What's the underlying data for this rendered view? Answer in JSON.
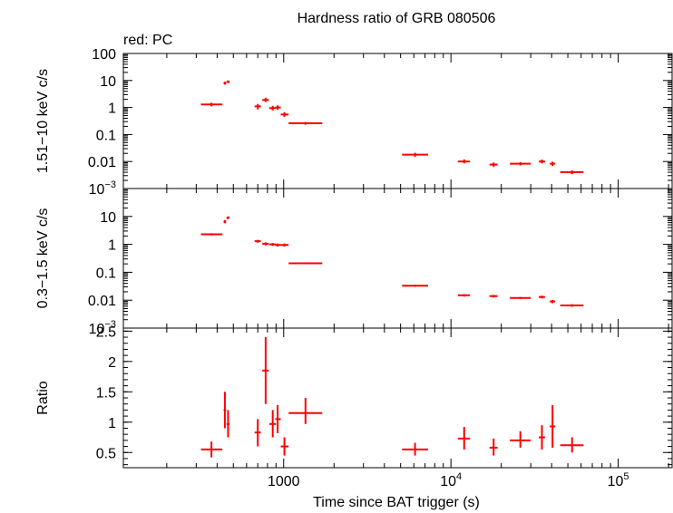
{
  "title": "Hardness ratio of GRB 080506",
  "subtitle": "red: PC",
  "x_label": "Time since BAT trigger (s)",
  "x_ticks": [
    {
      "value": 1000,
      "label": "1000"
    },
    {
      "value": 10000,
      "label": "10",
      "exp": "4"
    },
    {
      "value": 100000,
      "label": "10",
      "exp": "5"
    }
  ],
  "colors": {
    "data": "#ff0000",
    "axis": "#000000"
  },
  "chart_data": [
    {
      "type": "scatter",
      "ylabel": "1.51−10 keV c/s",
      "xscale": "log",
      "yscale": "log",
      "xlim": [
        110,
        210000
      ],
      "ylim": [
        0.001,
        100
      ],
      "y_ticks": [
        {
          "value": 100,
          "label": "100"
        },
        {
          "value": 10,
          "label": "10"
        },
        {
          "value": 1,
          "label": "1"
        },
        {
          "value": 0.1,
          "label": "0.1"
        },
        {
          "value": 0.01,
          "label": "0.01"
        },
        {
          "value": 0.001,
          "label": "10",
          "exp": "−3"
        }
      ],
      "points": [
        {
          "x": 370,
          "xlo": 320,
          "xhi": 430,
          "y": 1.3,
          "ylo": 1.1,
          "yhi": 1.5
        },
        {
          "x": 445,
          "xlo": 437,
          "xhi": 453,
          "y": 8.0,
          "ylo": 7.0,
          "yhi": 9.0
        },
        {
          "x": 465,
          "xlo": 455,
          "xhi": 475,
          "y": 9.0,
          "ylo": 8.0,
          "yhi": 10.0
        },
        {
          "x": 700,
          "xlo": 670,
          "xhi": 730,
          "y": 1.1,
          "ylo": 0.85,
          "yhi": 1.35
        },
        {
          "x": 780,
          "xlo": 745,
          "xhi": 815,
          "y": 1.9,
          "ylo": 1.6,
          "yhi": 2.3
        },
        {
          "x": 860,
          "xlo": 820,
          "xhi": 900,
          "y": 0.95,
          "ylo": 0.78,
          "yhi": 1.15
        },
        {
          "x": 920,
          "xlo": 890,
          "xhi": 960,
          "y": 1.0,
          "ylo": 0.82,
          "yhi": 1.2
        },
        {
          "x": 1010,
          "xlo": 960,
          "xhi": 1070,
          "y": 0.55,
          "ylo": 0.45,
          "yhi": 0.67
        },
        {
          "x": 1350,
          "xlo": 1070,
          "xhi": 1700,
          "y": 0.26,
          "ylo": 0.23,
          "yhi": 0.29
        },
        {
          "x": 6100,
          "xlo": 5100,
          "xhi": 7300,
          "y": 0.018,
          "ylo": 0.015,
          "yhi": 0.021
        },
        {
          "x": 12000,
          "xlo": 11000,
          "xhi": 13000,
          "y": 0.01,
          "ylo": 0.0085,
          "yhi": 0.012
        },
        {
          "x": 18000,
          "xlo": 17000,
          "xhi": 19000,
          "y": 0.0077,
          "ylo": 0.0063,
          "yhi": 0.0092
        },
        {
          "x": 26000,
          "xlo": 22500,
          "xhi": 30000,
          "y": 0.0083,
          "ylo": 0.0072,
          "yhi": 0.0095
        },
        {
          "x": 35000,
          "xlo": 33500,
          "xhi": 36500,
          "y": 0.01,
          "ylo": 0.0085,
          "yhi": 0.0118
        },
        {
          "x": 40500,
          "xlo": 39000,
          "xhi": 42000,
          "y": 0.0083,
          "ylo": 0.0068,
          "yhi": 0.0098
        },
        {
          "x": 53000,
          "xlo": 45000,
          "xhi": 62000,
          "y": 0.004,
          "ylo": 0.0034,
          "yhi": 0.0047
        }
      ]
    },
    {
      "type": "scatter",
      "ylabel": "0.3−1.5 keV c/s",
      "xscale": "log",
      "yscale": "log",
      "xlim": [
        110,
        210000
      ],
      "ylim": [
        0.001,
        100
      ],
      "y_ticks": [
        {
          "value": 10,
          "label": "10"
        },
        {
          "value": 1,
          "label": "1"
        },
        {
          "value": 0.1,
          "label": "0.1"
        },
        {
          "value": 0.01,
          "label": "0.01"
        },
        {
          "value": 0.001,
          "label": "10",
          "exp": "−3"
        }
      ],
      "points": [
        {
          "x": 370,
          "xlo": 320,
          "xhi": 430,
          "y": 2.3,
          "ylo": 2.1,
          "yhi": 2.5
        },
        {
          "x": 445,
          "xlo": 437,
          "xhi": 453,
          "y": 6.5,
          "ylo": 5.7,
          "yhi": 7.4
        },
        {
          "x": 465,
          "xlo": 455,
          "xhi": 475,
          "y": 9.0,
          "ylo": 8.0,
          "yhi": 10.0
        },
        {
          "x": 700,
          "xlo": 670,
          "xhi": 730,
          "y": 1.3,
          "ylo": 1.15,
          "yhi": 1.45
        },
        {
          "x": 780,
          "xlo": 745,
          "xhi": 815,
          "y": 1.05,
          "ylo": 0.92,
          "yhi": 1.18
        },
        {
          "x": 860,
          "xlo": 820,
          "xhi": 900,
          "y": 1.0,
          "ylo": 0.88,
          "yhi": 1.12
        },
        {
          "x": 920,
          "xlo": 890,
          "xhi": 960,
          "y": 0.95,
          "ylo": 0.83,
          "yhi": 1.07
        },
        {
          "x": 1010,
          "xlo": 960,
          "xhi": 1070,
          "y": 0.95,
          "ylo": 0.83,
          "yhi": 1.07
        },
        {
          "x": 1350,
          "xlo": 1070,
          "xhi": 1700,
          "y": 0.21,
          "ylo": 0.195,
          "yhi": 0.225
        },
        {
          "x": 6100,
          "xlo": 5100,
          "xhi": 7300,
          "y": 0.033,
          "ylo": 0.03,
          "yhi": 0.036
        },
        {
          "x": 12000,
          "xlo": 11000,
          "xhi": 13000,
          "y": 0.015,
          "ylo": 0.0135,
          "yhi": 0.0165
        },
        {
          "x": 18000,
          "xlo": 17000,
          "xhi": 19000,
          "y": 0.014,
          "ylo": 0.0125,
          "yhi": 0.0155
        },
        {
          "x": 26000,
          "xlo": 22500,
          "xhi": 30000,
          "y": 0.012,
          "ylo": 0.011,
          "yhi": 0.013
        },
        {
          "x": 35000,
          "xlo": 33500,
          "xhi": 36500,
          "y": 0.013,
          "ylo": 0.0115,
          "yhi": 0.0145
        },
        {
          "x": 40500,
          "xlo": 39000,
          "xhi": 42000,
          "y": 0.009,
          "ylo": 0.0078,
          "yhi": 0.0102
        },
        {
          "x": 53000,
          "xlo": 45000,
          "xhi": 62000,
          "y": 0.0065,
          "ylo": 0.0058,
          "yhi": 0.0072
        }
      ]
    },
    {
      "type": "scatter",
      "ylabel": "Ratio",
      "xscale": "log",
      "yscale": "linear",
      "xlim": [
        110,
        210000
      ],
      "ylim": [
        0.25,
        2.55
      ],
      "y_ticks": [
        {
          "value": 2.5,
          "label": "2.5"
        },
        {
          "value": 2,
          "label": "2"
        },
        {
          "value": 1.5,
          "label": "1.5"
        },
        {
          "value": 1,
          "label": "1"
        },
        {
          "value": 0.5,
          "label": "0.5"
        }
      ],
      "points": [
        {
          "x": 370,
          "xlo": 320,
          "xhi": 430,
          "y": 0.55,
          "ylo": 0.42,
          "yhi": 0.68
        },
        {
          "x": 445,
          "xlo": 437,
          "xhi": 453,
          "y": 1.2,
          "ylo": 0.9,
          "yhi": 1.5
        },
        {
          "x": 465,
          "xlo": 455,
          "xhi": 475,
          "y": 0.97,
          "ylo": 0.75,
          "yhi": 1.2
        },
        {
          "x": 700,
          "xlo": 670,
          "xhi": 730,
          "y": 0.83,
          "ylo": 0.6,
          "yhi": 1.05
        },
        {
          "x": 780,
          "xlo": 745,
          "xhi": 815,
          "y": 1.85,
          "ylo": 1.3,
          "yhi": 2.4
        },
        {
          "x": 860,
          "xlo": 820,
          "xhi": 900,
          "y": 0.97,
          "ylo": 0.75,
          "yhi": 1.2
        },
        {
          "x": 920,
          "xlo": 890,
          "xhi": 960,
          "y": 1.05,
          "ylo": 0.82,
          "yhi": 1.28
        },
        {
          "x": 1010,
          "xlo": 960,
          "xhi": 1070,
          "y": 0.6,
          "ylo": 0.45,
          "yhi": 0.75
        },
        {
          "x": 1350,
          "xlo": 1070,
          "xhi": 1700,
          "y": 1.15,
          "ylo": 0.97,
          "yhi": 1.4
        },
        {
          "x": 6100,
          "xlo": 5100,
          "xhi": 7300,
          "y": 0.55,
          "ylo": 0.45,
          "yhi": 0.66
        },
        {
          "x": 12000,
          "xlo": 11000,
          "xhi": 13000,
          "y": 0.73,
          "ylo": 0.55,
          "yhi": 0.92
        },
        {
          "x": 18000,
          "xlo": 17000,
          "xhi": 19000,
          "y": 0.58,
          "ylo": 0.45,
          "yhi": 0.73
        },
        {
          "x": 26000,
          "xlo": 22500,
          "xhi": 30000,
          "y": 0.7,
          "ylo": 0.58,
          "yhi": 0.85
        },
        {
          "x": 35000,
          "xlo": 33500,
          "xhi": 36500,
          "y": 0.75,
          "ylo": 0.55,
          "yhi": 0.95
        },
        {
          "x": 40500,
          "xlo": 39000,
          "xhi": 42000,
          "y": 0.93,
          "ylo": 0.58,
          "yhi": 1.28
        },
        {
          "x": 53000,
          "xlo": 45000,
          "xhi": 62000,
          "y": 0.62,
          "ylo": 0.5,
          "yhi": 0.75
        }
      ]
    }
  ]
}
